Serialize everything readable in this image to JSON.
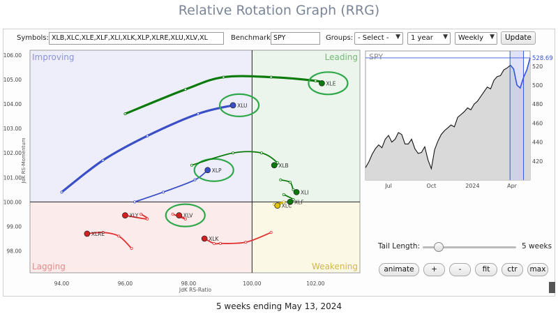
{
  "header": {
    "title": "Relative Rotation Graph (RRG)"
  },
  "controls": {
    "symbols_label": "Symbols:",
    "symbols_value": "XLB,XLC,XLE,XLF,XLI,XLK,XLP,XLRE,XLU,XLV,XL",
    "benchmark_label": "Benchmark:",
    "benchmark_value": "SPY",
    "groups_label": "Groups:",
    "groups_selected": "- Select -",
    "period_selected": "1 year",
    "interval_selected": "Weekly",
    "update_label": "Update"
  },
  "tail": {
    "label": "Tail Length:",
    "value_text": "5 weeks",
    "fraction": 0.1
  },
  "buttons": {
    "animate": "animate",
    "plus": "+",
    "minus": "-",
    "fit": "fit",
    "ctr": "ctr",
    "max": "max"
  },
  "footer": {
    "text": "5 weeks ending May 13, 2024"
  },
  "colors": {
    "leading": "#008000",
    "improving": "#3a4fc7",
    "lagging": "#dd2222",
    "weakening": "#e8c600",
    "highlight": "#2ea84a",
    "benchmark_line": "#000000",
    "benchmark_recent": "#3355dd"
  },
  "chart_data": [
    {
      "type": "scatter",
      "title": "",
      "xlabel": "JdK RS-Ratio",
      "ylabel": "JdK RS-Momentum",
      "xlim": [
        93.0,
        103.4
      ],
      "ylim": [
        97.1,
        106.2
      ],
      "x_ticks": [
        "94.00",
        "96.00",
        "98.00",
        "100.00",
        "102.00"
      ],
      "y_ticks": [
        "98.00",
        "99.00",
        "100.00",
        "101.00",
        "102.00",
        "103.00",
        "104.00",
        "105.00",
        "106.00"
      ],
      "quadrants": {
        "top_left": "Improving",
        "top_right": "Leading",
        "bottom_left": "Lagging",
        "bottom_right": "Weakening"
      },
      "series": [
        {
          "name": "XLE",
          "color_key": "leading",
          "highlighted": true,
          "points": [
            [
              96.0,
              103.6
            ],
            [
              97.9,
              104.6
            ],
            [
              99.1,
              105.1
            ],
            [
              100.6,
              105.1
            ],
            [
              102.0,
              104.95
            ],
            [
              102.2,
              104.85
            ]
          ]
        },
        {
          "name": "XLU",
          "color_key": "improving",
          "highlighted": true,
          "points": [
            [
              94.0,
              100.4
            ],
            [
              95.3,
              101.7
            ],
            [
              96.7,
              102.7
            ],
            [
              98.3,
              103.6
            ],
            [
              99.4,
              103.95
            ]
          ]
        },
        {
          "name": "XLP",
          "color_key": "improving",
          "highlighted": true,
          "points": [
            [
              96.3,
              100.0
            ],
            [
              97.2,
              100.4
            ],
            [
              98.2,
              100.9
            ],
            [
              98.6,
              101.3
            ]
          ]
        },
        {
          "name": "XLB",
          "color_key": "leading",
          "highlighted": false,
          "points": [
            [
              98.1,
              101.5
            ],
            [
              99.4,
              102.0
            ],
            [
              100.3,
              102.0
            ],
            [
              100.8,
              101.6
            ],
            [
              100.7,
              101.5
            ]
          ]
        },
        {
          "name": "XLI",
          "color_key": "leading",
          "highlighted": false,
          "points": [
            [
              100.9,
              100.9
            ],
            [
              101.2,
              100.8
            ],
            [
              101.3,
              100.5
            ],
            [
              101.4,
              100.4
            ]
          ]
        },
        {
          "name": "XLF",
          "color_key": "leading",
          "highlighted": false,
          "points": [
            [
              101.0,
              100.3
            ],
            [
              101.3,
              100.1
            ],
            [
              101.2,
              100.0
            ]
          ]
        },
        {
          "name": "XLC",
          "color_key": "weakening",
          "highlighted": false,
          "points": [
            [
              100.7,
              99.9
            ],
            [
              101.0,
              100.0
            ],
            [
              100.8,
              99.85
            ]
          ]
        },
        {
          "name": "XLV",
          "color_key": "lagging",
          "highlighted": true,
          "points": [
            [
              97.5,
              99.5
            ],
            [
              97.9,
              99.3
            ],
            [
              97.7,
              99.45
            ]
          ]
        },
        {
          "name": "XLY",
          "color_key": "lagging",
          "highlighted": false,
          "points": [
            [
              96.5,
              99.5
            ],
            [
              96.7,
              99.3
            ],
            [
              96.0,
              99.45
            ]
          ]
        },
        {
          "name": "XLRE",
          "color_key": "lagging",
          "highlighted": false,
          "points": [
            [
              96.2,
              98.1
            ],
            [
              95.8,
              98.6
            ],
            [
              95.3,
              98.75
            ],
            [
              94.8,
              98.7
            ]
          ]
        },
        {
          "name": "XLK",
          "color_key": "lagging",
          "highlighted": false,
          "points": [
            [
              100.6,
              98.75
            ],
            [
              99.8,
              98.35
            ],
            [
              99.0,
              98.3
            ],
            [
              98.8,
              98.3
            ],
            [
              98.5,
              98.5
            ]
          ]
        }
      ]
    },
    {
      "type": "line",
      "title": "SPY",
      "last_value_label": "528.69",
      "ylim": [
        400,
        536
      ],
      "y_ticks": [
        "420",
        "440",
        "460",
        "480",
        "500",
        "520"
      ],
      "x_ticks": [
        {
          "label": "Jul",
          "x": 0.14
        },
        {
          "label": "Oct",
          "x": 0.4
        },
        {
          "label": "2024",
          "x": 0.65
        },
        {
          "label": "Apr",
          "x": 0.89
        }
      ],
      "recent_window": [
        0.878,
        0.96
      ],
      "series": [
        {
          "name": "SPY",
          "x": [
            0.0,
            0.02,
            0.04,
            0.06,
            0.08,
            0.1,
            0.12,
            0.14,
            0.16,
            0.18,
            0.2,
            0.22,
            0.24,
            0.26,
            0.28,
            0.3,
            0.32,
            0.34,
            0.36,
            0.38,
            0.4,
            0.42,
            0.44,
            0.46,
            0.48,
            0.5,
            0.52,
            0.54,
            0.56,
            0.58,
            0.6,
            0.62,
            0.64,
            0.66,
            0.68,
            0.7,
            0.72,
            0.74,
            0.76,
            0.78,
            0.8,
            0.82,
            0.84,
            0.86,
            0.88,
            0.9,
            0.92,
            0.94,
            0.96,
            0.98,
            1.0
          ],
          "values": [
            413,
            419,
            427,
            433,
            437,
            434,
            443,
            447,
            440,
            443,
            450,
            448,
            438,
            438,
            443,
            433,
            428,
            429,
            435,
            421,
            412,
            432,
            441,
            448,
            452,
            455,
            458,
            456,
            466,
            469,
            472,
            476,
            474,
            480,
            483,
            488,
            493,
            498,
            496,
            505,
            509,
            510,
            516,
            518,
            521,
            517,
            500,
            497,
            508,
            516,
            528.69
          ]
        }
      ]
    }
  ]
}
